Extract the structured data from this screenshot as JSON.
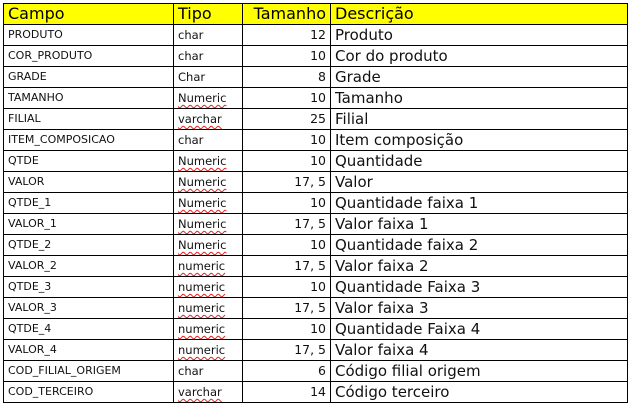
{
  "header": {
    "campo": "Campo",
    "tipo": "Tipo",
    "tamanho": "Tamanho",
    "descricao": "Descrição"
  },
  "header_color": "#ffff00",
  "rows": [
    {
      "campo": "PRODUTO",
      "tipo": "char",
      "tamanho": "12",
      "descricao": "Produto",
      "spell": false
    },
    {
      "campo": "COR_PRODUTO",
      "tipo": "char",
      "tamanho": "10",
      "descricao": "Cor do produto",
      "spell": false
    },
    {
      "campo": "GRADE",
      "tipo": "Char",
      "tamanho": "8",
      "descricao": "Grade",
      "spell": false
    },
    {
      "campo": "TAMANHO",
      "tipo": "Numeric",
      "tamanho": "10",
      "descricao": "Tamanho",
      "spell": true
    },
    {
      "campo": "FILIAL",
      "tipo": "varchar",
      "tamanho": "25",
      "descricao": "Filial",
      "spell": true
    },
    {
      "campo": "ITEM_COMPOSICAO",
      "tipo": "char",
      "tamanho": "10",
      "descricao": "Item composição",
      "spell": false
    },
    {
      "campo": "QTDE",
      "tipo": "Numeric",
      "tamanho": "10",
      "descricao": "Quantidade",
      "spell": true
    },
    {
      "campo": "VALOR",
      "tipo": "Numeric",
      "tamanho": "17, 5",
      "descricao": "Valor",
      "spell": true
    },
    {
      "campo": "QTDE_1",
      "tipo": "Numeric",
      "tamanho": "10",
      "descricao": "Quantidade faixa 1",
      "spell": true
    },
    {
      "campo": "VALOR_1",
      "tipo": "Numeric",
      "tamanho": "17, 5",
      "descricao": "Valor faixa 1",
      "spell": true
    },
    {
      "campo": "QTDE_2",
      "tipo": "Numeric",
      "tamanho": "10",
      "descricao": "Quantidade faixa 2",
      "spell": true
    },
    {
      "campo": "VALOR_2",
      "tipo": "numeric",
      "tamanho": "17, 5",
      "descricao": "Valor faixa 2",
      "spell": true
    },
    {
      "campo": "QTDE_3",
      "tipo": "numeric",
      "tamanho": "10",
      "descricao": "Quantidade Faixa 3",
      "spell": true
    },
    {
      "campo": "VALOR_3",
      "tipo": "numeric",
      "tamanho": "17, 5",
      "descricao": "Valor faixa 3",
      "spell": true
    },
    {
      "campo": "QTDE_4",
      "tipo": "numeric",
      "tamanho": "10",
      "descricao": "Quantidade Faixa 4",
      "spell": true
    },
    {
      "campo": "VALOR_4",
      "tipo": "numeric",
      "tamanho": "17, 5",
      "descricao": "Valor faixa 4",
      "spell": true
    },
    {
      "campo": "COD_FILIAL_ORIGEM",
      "tipo": "char",
      "tamanho": "6",
      "descricao": "Código filial origem",
      "spell": false
    },
    {
      "campo": "COD_TERCEIRO",
      "tipo": "varchar",
      "tamanho": "14",
      "descricao": "Código terceiro",
      "spell": true
    }
  ]
}
